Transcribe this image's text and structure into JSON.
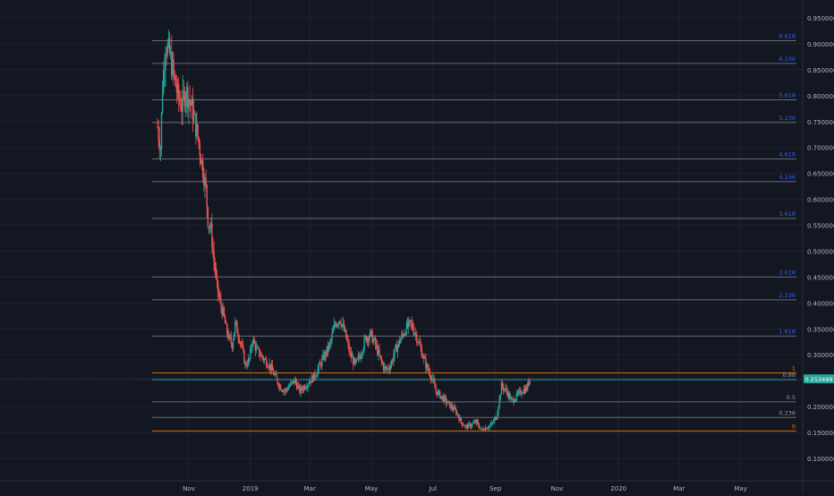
{
  "colors": {
    "background": "#131722",
    "grid": "#1e2230",
    "axis_text": "#b2b5be",
    "up": "#26a69a",
    "down": "#ef5350",
    "fib_line": "#787b86",
    "fib_label_blue": "#2962ff",
    "fib_label_gray": "#9598a1",
    "fib_orange": "#f57c00",
    "fib_teal": "#26a69a",
    "price_badge": "#26a69a"
  },
  "chart_data": {
    "type": "candlestick",
    "title": "",
    "xlabel": "",
    "ylabel": "",
    "ylim": [
      0.05,
      0.98
    ],
    "y_ticks": [
      "0.100000",
      "0.150000",
      "0.200000",
      "0.250000",
      "0.300000",
      "0.350000",
      "0.400000",
      "0.450000",
      "0.500000",
      "0.550000",
      "0.600000",
      "0.650000",
      "0.700000",
      "0.750000",
      "0.800000",
      "0.850000",
      "0.900000",
      "0.950000"
    ],
    "x_ticks": [
      {
        "label": "Nov",
        "date": "2018-11-01"
      },
      {
        "label": "2019",
        "date": "2019-01-01"
      },
      {
        "label": "Mar",
        "date": "2019-03-01"
      },
      {
        "label": "May",
        "date": "2019-05-01"
      },
      {
        "label": "Jul",
        "date": "2019-07-01"
      },
      {
        "label": "Sep",
        "date": "2019-09-01"
      },
      {
        "label": "Nov",
        "date": "2019-11-01"
      },
      {
        "label": "2020",
        "date": "2020-01-01"
      },
      {
        "label": "Mar",
        "date": "2020-03-01"
      },
      {
        "label": "May",
        "date": "2020-05-01"
      }
    ],
    "x_range": [
      "2018-09-28",
      "2020-06-20"
    ],
    "price_trail_dates": [
      "2018-10-01",
      "2018-10-04",
      "2018-10-06",
      "2018-10-09",
      "2018-10-13",
      "2018-10-17",
      "2018-10-21",
      "2018-10-25",
      "2018-10-29",
      "2018-11-02",
      "2018-11-06",
      "2018-11-10",
      "2018-11-14",
      "2018-11-18",
      "2018-11-20",
      "2018-11-23",
      "2018-11-26",
      "2018-11-29",
      "2018-12-02",
      "2018-12-05",
      "2018-12-08",
      "2018-12-11",
      "2018-12-14",
      "2018-12-17",
      "2018-12-20",
      "2018-12-23",
      "2018-12-27",
      "2018-12-31",
      "2019-01-03",
      "2019-01-07",
      "2019-01-11",
      "2019-01-15",
      "2019-01-20",
      "2019-01-25",
      "2019-01-30",
      "2019-02-04",
      "2019-02-09",
      "2019-02-14",
      "2019-02-19",
      "2019-02-24",
      "2019-03-01",
      "2019-03-06",
      "2019-03-11",
      "2019-03-16",
      "2019-03-21",
      "2019-03-26",
      "2019-03-31",
      "2019-04-05",
      "2019-04-10",
      "2019-04-15",
      "2019-04-20",
      "2019-04-25",
      "2019-04-30",
      "2019-05-05",
      "2019-05-10",
      "2019-05-15",
      "2019-05-20",
      "2019-05-25",
      "2019-05-30",
      "2019-06-04",
      "2019-06-09",
      "2019-06-14",
      "2019-06-19",
      "2019-06-24",
      "2019-06-29",
      "2019-07-04",
      "2019-07-09",
      "2019-07-14",
      "2019-07-19",
      "2019-07-24",
      "2019-07-29",
      "2019-08-03",
      "2019-08-08",
      "2019-08-13",
      "2019-08-18",
      "2019-08-23",
      "2019-08-28",
      "2019-09-02",
      "2019-09-07",
      "2019-09-12",
      "2019-09-17",
      "2019-09-22",
      "2019-09-27",
      "2019-10-02",
      "2019-10-05"
    ],
    "price_trail": [
      0.74,
      0.7,
      0.82,
      0.9,
      0.88,
      0.84,
      0.8,
      0.78,
      0.81,
      0.79,
      0.76,
      0.72,
      0.67,
      0.62,
      0.56,
      0.54,
      0.48,
      0.43,
      0.4,
      0.38,
      0.35,
      0.33,
      0.32,
      0.36,
      0.34,
      0.32,
      0.28,
      0.29,
      0.33,
      0.31,
      0.3,
      0.29,
      0.28,
      0.26,
      0.24,
      0.23,
      0.24,
      0.25,
      0.23,
      0.24,
      0.25,
      0.26,
      0.28,
      0.3,
      0.32,
      0.36,
      0.37,
      0.34,
      0.3,
      0.28,
      0.3,
      0.33,
      0.34,
      0.32,
      0.29,
      0.27,
      0.28,
      0.31,
      0.33,
      0.35,
      0.36,
      0.34,
      0.31,
      0.28,
      0.26,
      0.23,
      0.22,
      0.21,
      0.2,
      0.19,
      0.17,
      0.16,
      0.165,
      0.17,
      0.155,
      0.16,
      0.165,
      0.18,
      0.24,
      0.23,
      0.21,
      0.22,
      0.23,
      0.235,
      0.253499
    ],
    "fib_levels": [
      {
        "label": "0",
        "price": 0.153,
        "style": "orange"
      },
      {
        "label": "0.236",
        "price": 0.179,
        "style": "gray"
      },
      {
        "label": "0.5",
        "price": 0.209,
        "style": "gray"
      },
      {
        "label": "0.88",
        "price": 0.252,
        "style": "teal"
      },
      {
        "label": "1",
        "price": 0.265,
        "style": "orange"
      },
      {
        "label": "1.618",
        "price": 0.336,
        "style": "blue"
      },
      {
        "label": "2.236",
        "price": 0.406,
        "style": "blue"
      },
      {
        "label": "2.618",
        "price": 0.45,
        "style": "blue"
      },
      {
        "label": "3.618",
        "price": 0.563,
        "style": "blue"
      },
      {
        "label": "4.236",
        "price": 0.634,
        "style": "blue"
      },
      {
        "label": "4.618",
        "price": 0.678,
        "style": "blue"
      },
      {
        "label": "5.236",
        "price": 0.748,
        "style": "blue"
      },
      {
        "label": "5.618",
        "price": 0.792,
        "style": "blue"
      },
      {
        "label": "6.236",
        "price": 0.862,
        "style": "blue"
      },
      {
        "label": "6.618",
        "price": 0.906,
        "style": "blue"
      }
    ],
    "last_price": "0.253499",
    "grid": true
  }
}
